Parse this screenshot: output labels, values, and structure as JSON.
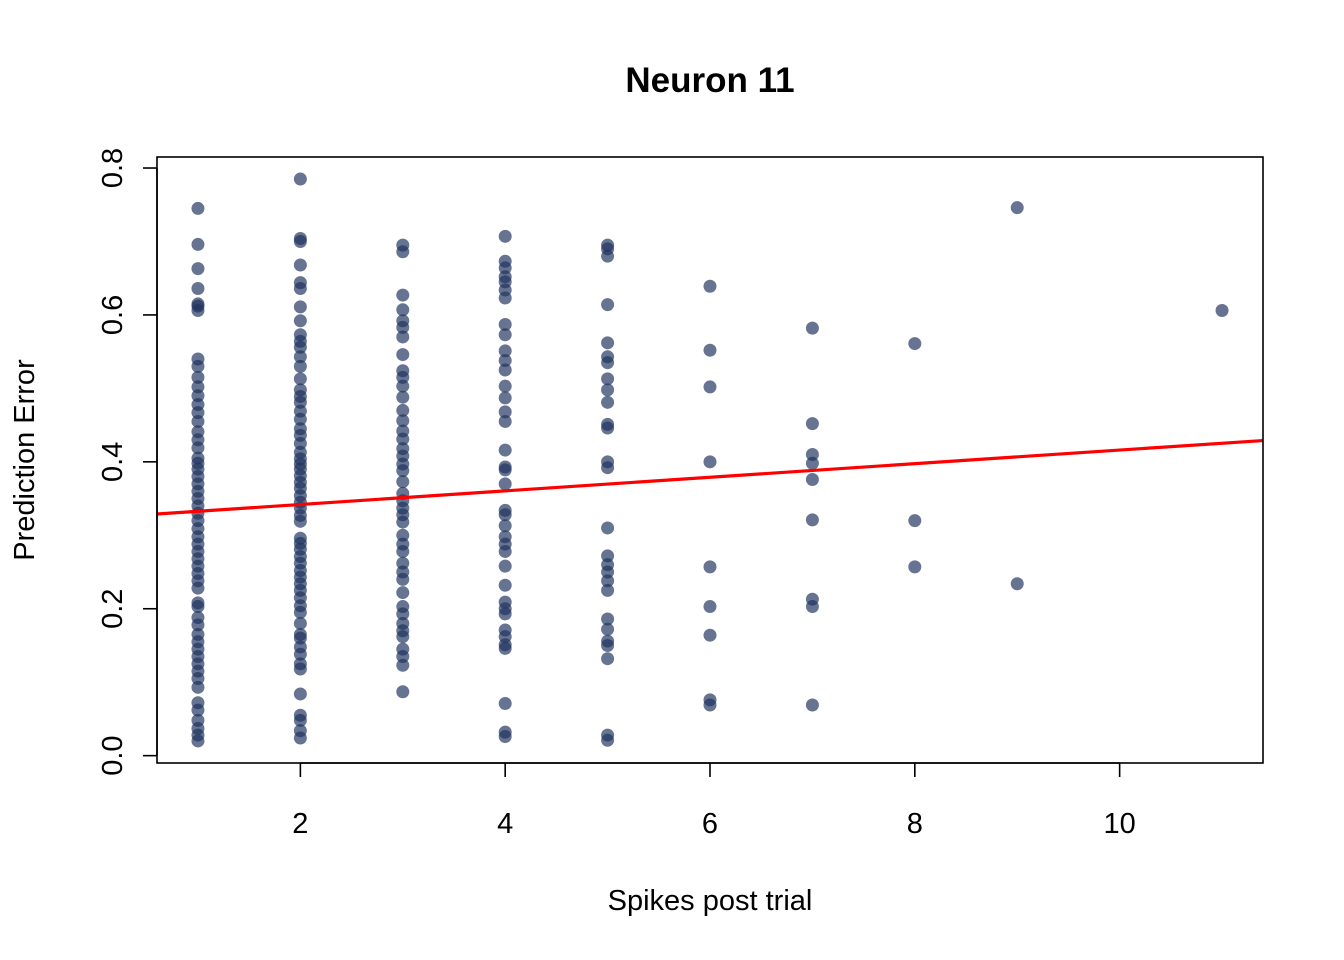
{
  "chart_data": {
    "type": "scatter",
    "title": "Neuron 11",
    "xlabel": "Spikes post trial",
    "ylabel": "Prediction Error",
    "xlim": [
      0.6,
      11.4
    ],
    "ylim": [
      -0.01,
      0.815
    ],
    "xticks": [
      2,
      4,
      6,
      8,
      10
    ],
    "xtick_labels": [
      "2",
      "4",
      "6",
      "8",
      "10"
    ],
    "yticks": [
      0.0,
      0.2,
      0.4,
      0.6,
      0.8
    ],
    "ytick_labels": [
      "0.0",
      "0.2",
      "0.4",
      "0.6",
      "0.8"
    ],
    "point_color": "#1e325f",
    "line_color": "#ff0000",
    "grid": false,
    "fit_line": {
      "x": [
        0.6,
        11.4
      ],
      "y": [
        0.329,
        0.429
      ]
    },
    "series": [
      {
        "points": [
          [
            1,
            0.745
          ],
          [
            1,
            0.696
          ],
          [
            1,
            0.663
          ],
          [
            1,
            0.636
          ],
          [
            1,
            0.615
          ],
          [
            1,
            0.612
          ],
          [
            1,
            0.606
          ],
          [
            1,
            0.54
          ],
          [
            1,
            0.53
          ],
          [
            1,
            0.515
          ],
          [
            1,
            0.502
          ],
          [
            1,
            0.49
          ],
          [
            1,
            0.478
          ],
          [
            1,
            0.467
          ],
          [
            1,
            0.455
          ],
          [
            1,
            0.441
          ],
          [
            1,
            0.43
          ],
          [
            1,
            0.419
          ],
          [
            1,
            0.405
          ],
          [
            1,
            0.398
          ],
          [
            1,
            0.39
          ],
          [
            1,
            0.38
          ],
          [
            1,
            0.37
          ],
          [
            1,
            0.36
          ],
          [
            1,
            0.35
          ],
          [
            1,
            0.34
          ],
          [
            1,
            0.33
          ],
          [
            1,
            0.32
          ],
          [
            1,
            0.309
          ],
          [
            1,
            0.298
          ],
          [
            1,
            0.288
          ],
          [
            1,
            0.278
          ],
          [
            1,
            0.268
          ],
          [
            1,
            0.258
          ],
          [
            1,
            0.248
          ],
          [
            1,
            0.238
          ],
          [
            1,
            0.228
          ],
          [
            1,
            0.208
          ],
          [
            1,
            0.203
          ],
          [
            1,
            0.188
          ],
          [
            1,
            0.178
          ],
          [
            1,
            0.165
          ],
          [
            1,
            0.155
          ],
          [
            1,
            0.145
          ],
          [
            1,
            0.135
          ],
          [
            1,
            0.125
          ],
          [
            1,
            0.115
          ],
          [
            1,
            0.105
          ],
          [
            1,
            0.093
          ],
          [
            1,
            0.072
          ],
          [
            1,
            0.062
          ],
          [
            1,
            0.048
          ],
          [
            1,
            0.037
          ],
          [
            1,
            0.028
          ],
          [
            1,
            0.02
          ],
          [
            2,
            0.785
          ],
          [
            2,
            0.704
          ],
          [
            2,
            0.7
          ],
          [
            2,
            0.668
          ],
          [
            2,
            0.644
          ],
          [
            2,
            0.636
          ],
          [
            2,
            0.611
          ],
          [
            2,
            0.592
          ],
          [
            2,
            0.573
          ],
          [
            2,
            0.564
          ],
          [
            2,
            0.556
          ],
          [
            2,
            0.543
          ],
          [
            2,
            0.53
          ],
          [
            2,
            0.513
          ],
          [
            2,
            0.498
          ],
          [
            2,
            0.489
          ],
          [
            2,
            0.481
          ],
          [
            2,
            0.469
          ],
          [
            2,
            0.458
          ],
          [
            2,
            0.445
          ],
          [
            2,
            0.436
          ],
          [
            2,
            0.425
          ],
          [
            2,
            0.413
          ],
          [
            2,
            0.404
          ],
          [
            2,
            0.397
          ],
          [
            2,
            0.39
          ],
          [
            2,
            0.381
          ],
          [
            2,
            0.372
          ],
          [
            2,
            0.364
          ],
          [
            2,
            0.354
          ],
          [
            2,
            0.345
          ],
          [
            2,
            0.337
          ],
          [
            2,
            0.327
          ],
          [
            2,
            0.319
          ],
          [
            2,
            0.296
          ],
          [
            2,
            0.289
          ],
          [
            2,
            0.281
          ],
          [
            2,
            0.271
          ],
          [
            2,
            0.262
          ],
          [
            2,
            0.252
          ],
          [
            2,
            0.243
          ],
          [
            2,
            0.234
          ],
          [
            2,
            0.225
          ],
          [
            2,
            0.215
          ],
          [
            2,
            0.204
          ],
          [
            2,
            0.195
          ],
          [
            2,
            0.18
          ],
          [
            2,
            0.165
          ],
          [
            2,
            0.16
          ],
          [
            2,
            0.148
          ],
          [
            2,
            0.138
          ],
          [
            2,
            0.125
          ],
          [
            2,
            0.118
          ],
          [
            2,
            0.084
          ],
          [
            2,
            0.055
          ],
          [
            2,
            0.048
          ],
          [
            2,
            0.034
          ],
          [
            2,
            0.024
          ],
          [
            3,
            0.695
          ],
          [
            3,
            0.686
          ],
          [
            3,
            0.627
          ],
          [
            3,
            0.607
          ],
          [
            3,
            0.592
          ],
          [
            3,
            0.583
          ],
          [
            3,
            0.57
          ],
          [
            3,
            0.546
          ],
          [
            3,
            0.524
          ],
          [
            3,
            0.515
          ],
          [
            3,
            0.503
          ],
          [
            3,
            0.488
          ],
          [
            3,
            0.47
          ],
          [
            3,
            0.456
          ],
          [
            3,
            0.442
          ],
          [
            3,
            0.431
          ],
          [
            3,
            0.418
          ],
          [
            3,
            0.408
          ],
          [
            3,
            0.397
          ],
          [
            3,
            0.388
          ],
          [
            3,
            0.373
          ],
          [
            3,
            0.357
          ],
          [
            3,
            0.347
          ],
          [
            3,
            0.337
          ],
          [
            3,
            0.328
          ],
          [
            3,
            0.318
          ],
          [
            3,
            0.3
          ],
          [
            3,
            0.288
          ],
          [
            3,
            0.278
          ],
          [
            3,
            0.262
          ],
          [
            3,
            0.25
          ],
          [
            3,
            0.24
          ],
          [
            3,
            0.222
          ],
          [
            3,
            0.203
          ],
          [
            3,
            0.193
          ],
          [
            3,
            0.18
          ],
          [
            3,
            0.17
          ],
          [
            3,
            0.162
          ],
          [
            3,
            0.145
          ],
          [
            3,
            0.135
          ],
          [
            3,
            0.123
          ],
          [
            3,
            0.087
          ],
          [
            4,
            0.707
          ],
          [
            4,
            0.673
          ],
          [
            4,
            0.664
          ],
          [
            4,
            0.652
          ],
          [
            4,
            0.645
          ],
          [
            4,
            0.634
          ],
          [
            4,
            0.623
          ],
          [
            4,
            0.587
          ],
          [
            4,
            0.573
          ],
          [
            4,
            0.551
          ],
          [
            4,
            0.538
          ],
          [
            4,
            0.525
          ],
          [
            4,
            0.503
          ],
          [
            4,
            0.487
          ],
          [
            4,
            0.468
          ],
          [
            4,
            0.455
          ],
          [
            4,
            0.416
          ],
          [
            4,
            0.393
          ],
          [
            4,
            0.389
          ],
          [
            4,
            0.37
          ],
          [
            4,
            0.334
          ],
          [
            4,
            0.328
          ],
          [
            4,
            0.313
          ],
          [
            4,
            0.298
          ],
          [
            4,
            0.288
          ],
          [
            4,
            0.278
          ],
          [
            4,
            0.258
          ],
          [
            4,
            0.232
          ],
          [
            4,
            0.209
          ],
          [
            4,
            0.2
          ],
          [
            4,
            0.193
          ],
          [
            4,
            0.171
          ],
          [
            4,
            0.162
          ],
          [
            4,
            0.151
          ],
          [
            4,
            0.146
          ],
          [
            4,
            0.071
          ],
          [
            4,
            0.032
          ],
          [
            4,
            0.026
          ],
          [
            5,
            0.695
          ],
          [
            5,
            0.69
          ],
          [
            5,
            0.68
          ],
          [
            5,
            0.614
          ],
          [
            5,
            0.562
          ],
          [
            5,
            0.543
          ],
          [
            5,
            0.535
          ],
          [
            5,
            0.513
          ],
          [
            5,
            0.498
          ],
          [
            5,
            0.481
          ],
          [
            5,
            0.451
          ],
          [
            5,
            0.446
          ],
          [
            5,
            0.4
          ],
          [
            5,
            0.392
          ],
          [
            5,
            0.31
          ],
          [
            5,
            0.272
          ],
          [
            5,
            0.26
          ],
          [
            5,
            0.25
          ],
          [
            5,
            0.238
          ],
          [
            5,
            0.225
          ],
          [
            5,
            0.186
          ],
          [
            5,
            0.172
          ],
          [
            5,
            0.156
          ],
          [
            5,
            0.15
          ],
          [
            5,
            0.132
          ],
          [
            5,
            0.028
          ],
          [
            5,
            0.021
          ],
          [
            6,
            0.639
          ],
          [
            6,
            0.552
          ],
          [
            6,
            0.502
          ],
          [
            6,
            0.4
          ],
          [
            6,
            0.257
          ],
          [
            6,
            0.203
          ],
          [
            6,
            0.164
          ],
          [
            6,
            0.076
          ],
          [
            6,
            0.069
          ],
          [
            7,
            0.582
          ],
          [
            7,
            0.452
          ],
          [
            7,
            0.41
          ],
          [
            7,
            0.398
          ],
          [
            7,
            0.376
          ],
          [
            7,
            0.321
          ],
          [
            7,
            0.213
          ],
          [
            7,
            0.203
          ],
          [
            7,
            0.069
          ],
          [
            8,
            0.561
          ],
          [
            8,
            0.32
          ],
          [
            8,
            0.257
          ],
          [
            9,
            0.746
          ],
          [
            9,
            0.234
          ],
          [
            11,
            0.606
          ]
        ]
      }
    ]
  }
}
